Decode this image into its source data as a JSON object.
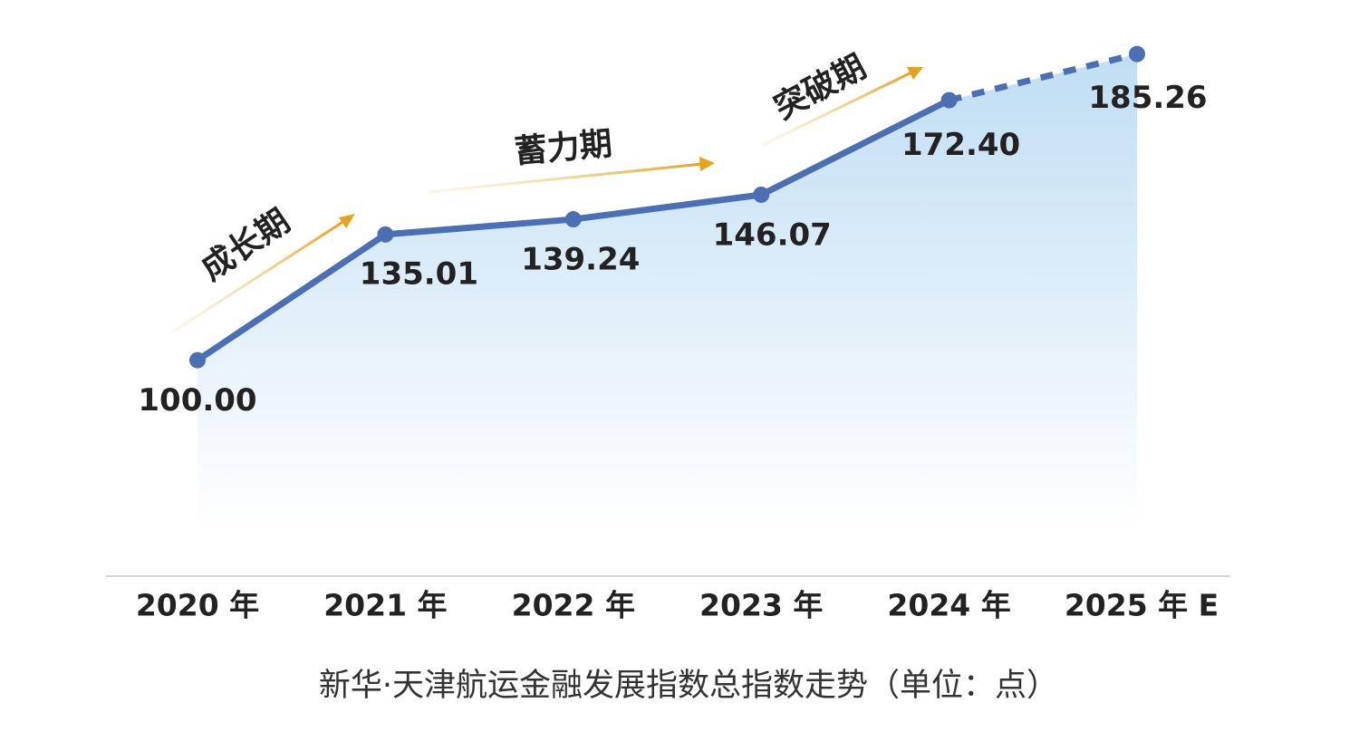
{
  "chart_data": {
    "type": "line",
    "title": "新华·天津航运金融发展指数总指数走势（单位：点）",
    "categories": [
      "2020 年",
      "2021 年",
      "2022 年",
      "2023 年",
      "2024 年",
      "2025 年 E"
    ],
    "values": [
      100.0,
      135.01,
      139.24,
      146.07,
      172.4,
      185.26
    ],
    "value_labels": [
      "100.00",
      "135.01",
      "139.24",
      "146.07",
      "172.40",
      "185.26"
    ],
    "color": "#4a6fb5",
    "last_segment_style": "dashed",
    "annotations": [
      "成长期",
      "蓄力期",
      "突破期"
    ]
  }
}
